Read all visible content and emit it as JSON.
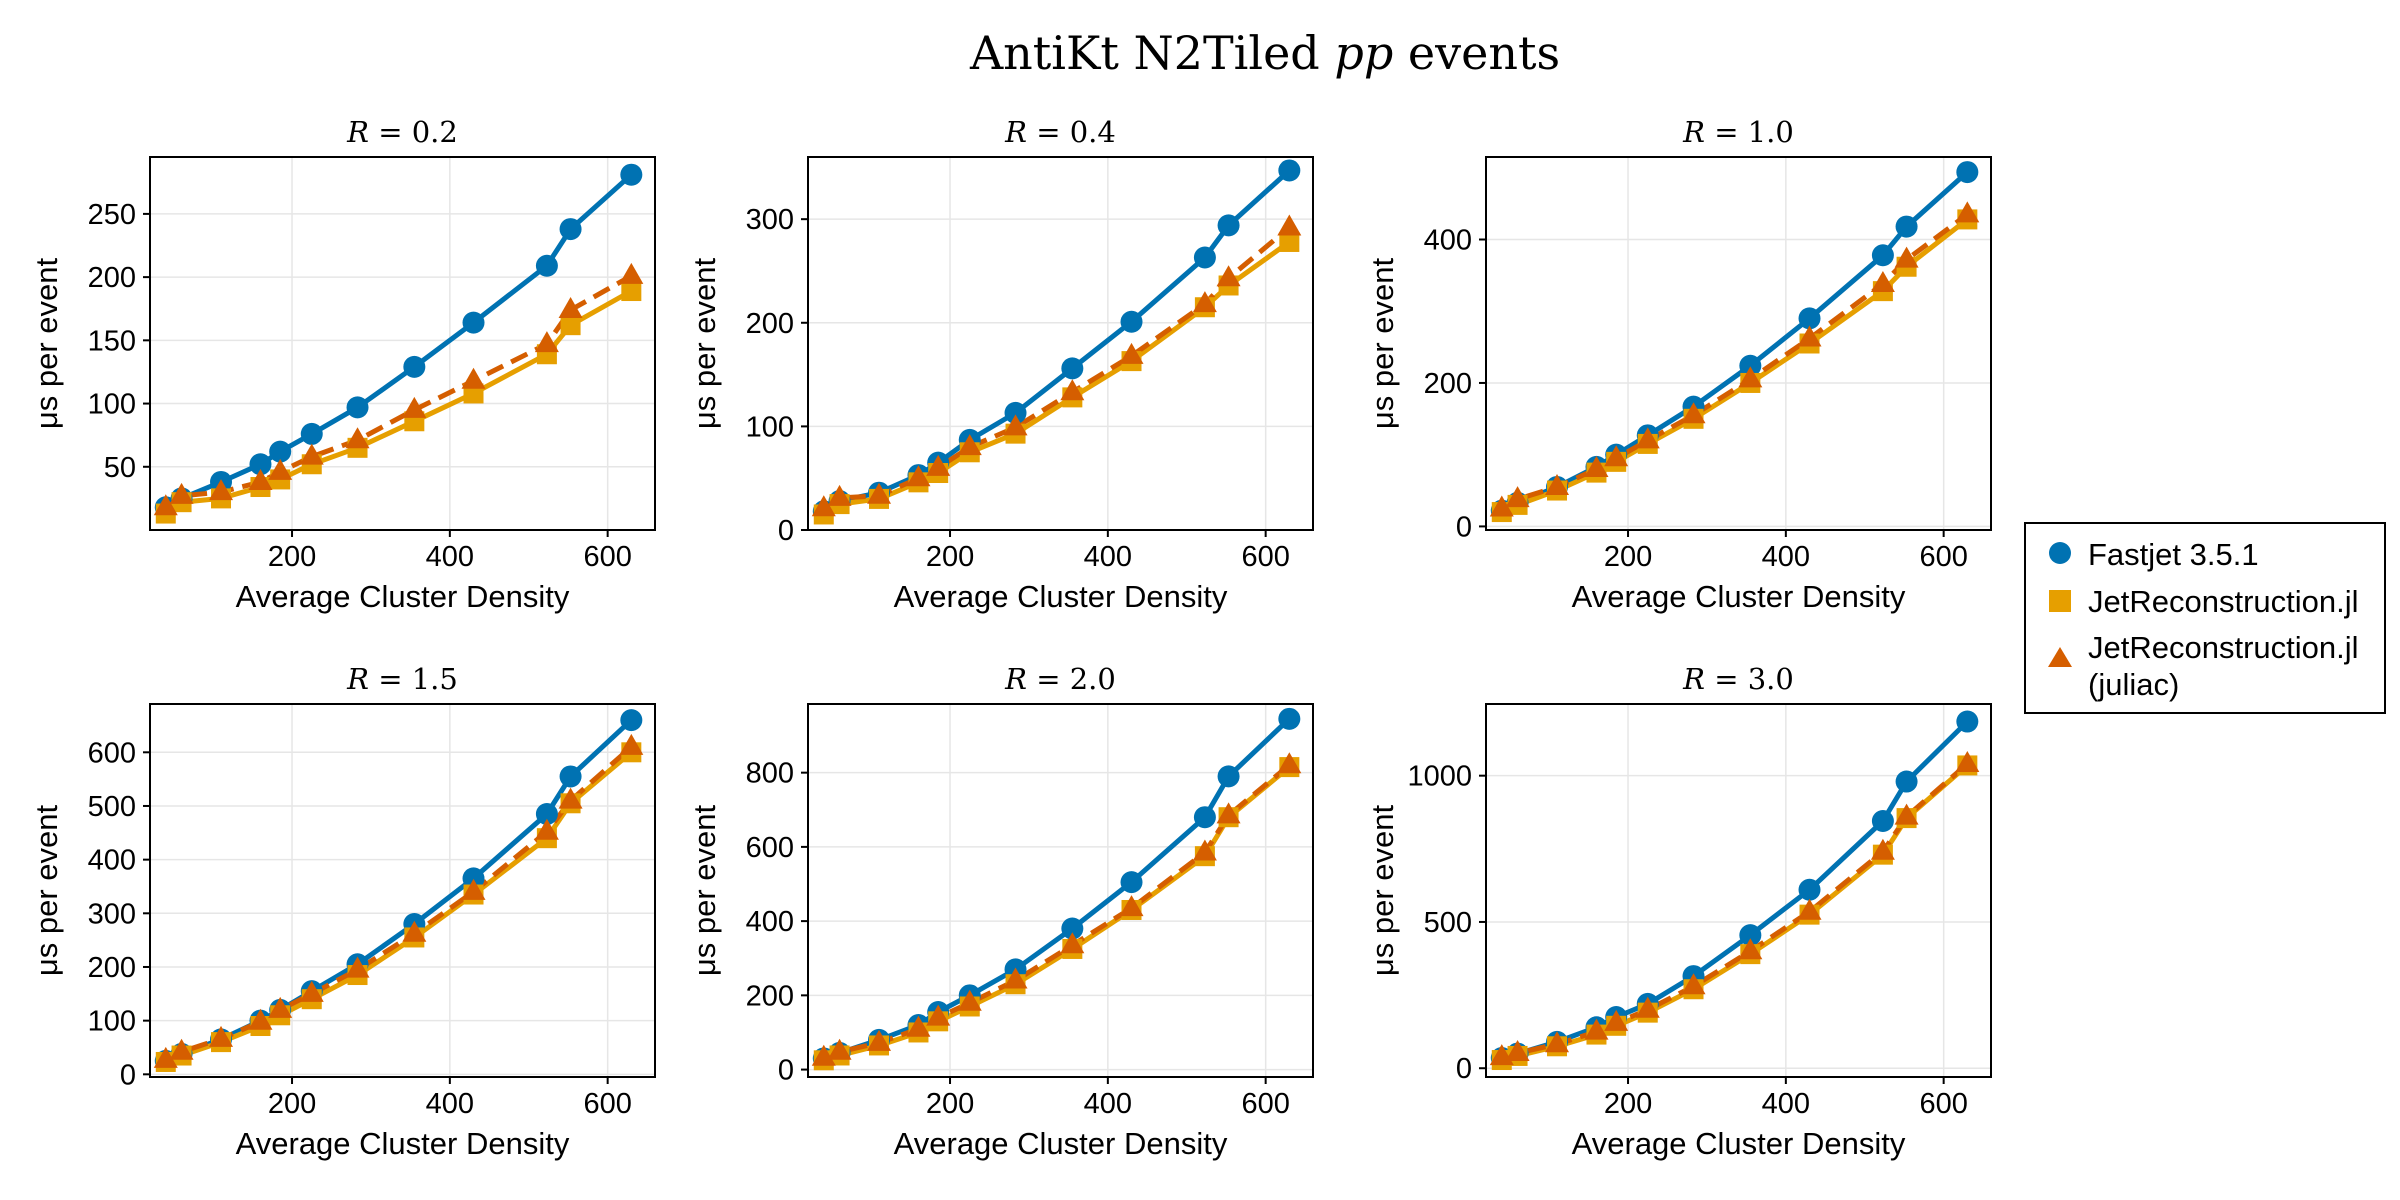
{
  "title": {
    "prefix": "AntiKt N2Tiled ",
    "italic": "pp",
    "suffix": " events"
  },
  "legend": {
    "entries": [
      {
        "lines": [
          "Fastjet 3.5.1"
        ]
      },
      {
        "lines": [
          "JetReconstruction.jl"
        ]
      },
      {
        "lines": [
          "JetReconstruction.jl",
          "(juliac)"
        ]
      }
    ]
  },
  "colors": {
    "fastjet": "#0072B2",
    "jetreco": "#E69F00",
    "juliac": "#D55E00",
    "grid": "#e6e6e6",
    "frame": "#000000"
  },
  "chart_data": [
    {
      "type": "line",
      "title": "R = 0.2",
      "title_var": "R",
      "title_value": "0.2",
      "xlabel": "Average Cluster Density",
      "ylabel": "μs per event",
      "xlim": [
        20,
        660
      ],
      "ylim": [
        0,
        295
      ],
      "xticks": [
        200,
        400,
        600
      ],
      "yticks": [
        50,
        100,
        150,
        200,
        250
      ],
      "x": [
        40,
        60,
        110,
        160,
        185,
        225,
        283,
        355,
        430,
        523,
        553,
        630
      ],
      "series": [
        {
          "name": "Fastjet 3.5.1",
          "marker": "circle",
          "dashed": false,
          "values": [
            18,
            25,
            38,
            52,
            62,
            76,
            97,
            129,
            164,
            209,
            238,
            281
          ]
        },
        {
          "name": "JetReconstruction.jl",
          "marker": "square",
          "dashed": false,
          "values": [
            13,
            22,
            25,
            34,
            40,
            52,
            65,
            86,
            108,
            139,
            162,
            189
          ]
        },
        {
          "name": "JetReconstruction.jl (juliac)",
          "marker": "triangle",
          "dashed": true,
          "values": [
            18,
            27,
            30,
            38,
            46,
            58,
            71,
            95,
            118,
            147,
            174,
            201
          ]
        }
      ]
    },
    {
      "type": "line",
      "title": "R = 0.4",
      "title_var": "R",
      "title_value": "0.4",
      "xlabel": "Average Cluster Density",
      "ylabel": "μs per event",
      "xlim": [
        20,
        660
      ],
      "ylim": [
        0,
        360
      ],
      "xticks": [
        200,
        400,
        600
      ],
      "yticks": [
        0,
        100,
        200,
        300
      ],
      "x": [
        40,
        60,
        110,
        160,
        185,
        225,
        283,
        355,
        430,
        523,
        553,
        630
      ],
      "series": [
        {
          "name": "Fastjet 3.5.1",
          "marker": "circle",
          "dashed": false,
          "values": [
            18,
            28,
            36,
            53,
            65,
            87,
            113,
            156,
            201,
            263,
            294,
            347
          ]
        },
        {
          "name": "JetReconstruction.jl",
          "marker": "square",
          "dashed": false,
          "values": [
            15,
            25,
            30,
            46,
            55,
            75,
            93,
            128,
            163,
            215,
            236,
            278
          ]
        },
        {
          "name": "JetReconstruction.jl (juliac)",
          "marker": "triangle",
          "dashed": true,
          "values": [
            21,
            31,
            33,
            50,
            60,
            80,
            99,
            133,
            168,
            218,
            243,
            292
          ]
        }
      ]
    },
    {
      "type": "line",
      "title": "R = 1.0",
      "title_var": "R",
      "title_value": "1.0",
      "xlabel": "Average Cluster Density",
      "ylabel": "μs per event",
      "xlim": [
        20,
        660
      ],
      "ylim": [
        -5,
        515
      ],
      "xticks": [
        200,
        400,
        600
      ],
      "yticks": [
        0,
        200,
        400
      ],
      "x": [
        40,
        60,
        110,
        160,
        185,
        225,
        283,
        355,
        430,
        523,
        553,
        630
      ],
      "series": [
        {
          "name": "Fastjet 3.5.1",
          "marker": "circle",
          "dashed": false,
          "values": [
            22,
            33,
            55,
            83,
            100,
            127,
            167,
            224,
            290,
            378,
            418,
            494
          ]
        },
        {
          "name": "JetReconstruction.jl",
          "marker": "square",
          "dashed": false,
          "values": [
            20,
            30,
            50,
            75,
            90,
            115,
            150,
            200,
            255,
            328,
            362,
            428
          ]
        },
        {
          "name": "JetReconstruction.jl (juliac)",
          "marker": "triangle",
          "dashed": true,
          "values": [
            25,
            38,
            55,
            80,
            95,
            120,
            155,
            205,
            262,
            338,
            372,
            435
          ]
        }
      ]
    },
    {
      "type": "line",
      "title": "R = 1.5",
      "title_var": "R",
      "title_value": "1.5",
      "xlabel": "Average Cluster Density",
      "ylabel": "μs per event",
      "xlim": [
        20,
        660
      ],
      "ylim": [
        -5,
        690
      ],
      "xticks": [
        200,
        400,
        600
      ],
      "yticks": [
        0,
        100,
        200,
        300,
        400,
        500,
        600
      ],
      "x": [
        40,
        60,
        110,
        160,
        185,
        225,
        283,
        355,
        430,
        523,
        553,
        630
      ],
      "series": [
        {
          "name": "Fastjet 3.5.1",
          "marker": "circle",
          "dashed": false,
          "values": [
            25,
            38,
            65,
            100,
            120,
            155,
            205,
            280,
            365,
            485,
            555,
            660
          ]
        },
        {
          "name": "JetReconstruction.jl",
          "marker": "square",
          "dashed": false,
          "values": [
            23,
            35,
            60,
            90,
            110,
            140,
            185,
            255,
            335,
            440,
            505,
            600
          ]
        },
        {
          "name": "JetReconstruction.jl (juliac)",
          "marker": "triangle",
          "dashed": true,
          "values": [
            27,
            42,
            66,
            98,
            120,
            150,
            195,
            262,
            340,
            452,
            510,
            610
          ]
        }
      ]
    },
    {
      "type": "line",
      "title": "R = 2.0",
      "title_var": "R",
      "title_value": "2.0",
      "xlabel": "Average Cluster Density",
      "ylabel": "μs per event",
      "xlim": [
        20,
        660
      ],
      "ylim": [
        -20,
        985
      ],
      "xticks": [
        200,
        400,
        600
      ],
      "yticks": [
        0,
        200,
        400,
        600,
        800
      ],
      "x": [
        40,
        60,
        110,
        160,
        185,
        225,
        283,
        355,
        430,
        523,
        553,
        630
      ],
      "series": [
        {
          "name": "Fastjet 3.5.1",
          "marker": "circle",
          "dashed": false,
          "values": [
            30,
            45,
            80,
            120,
            155,
            200,
            270,
            380,
            505,
            680,
            790,
            945
          ]
        },
        {
          "name": "JetReconstruction.jl",
          "marker": "square",
          "dashed": false,
          "values": [
            25,
            38,
            65,
            100,
            130,
            170,
            230,
            325,
            430,
            575,
            680,
            815
          ]
        },
        {
          "name": "JetReconstruction.jl (juliac)",
          "marker": "triangle",
          "dashed": true,
          "values": [
            32,
            48,
            72,
            110,
            140,
            180,
            240,
            335,
            435,
            585,
            685,
            820
          ]
        }
      ]
    },
    {
      "type": "line",
      "title": "R = 3.0",
      "title_var": "R",
      "title_value": "3.0",
      "xlabel": "Average Cluster Density",
      "ylabel": "μs per event",
      "xlim": [
        20,
        660
      ],
      "ylim": [
        -30,
        1245
      ],
      "xticks": [
        200,
        400,
        600
      ],
      "yticks": [
        0,
        500,
        1000
      ],
      "x": [
        40,
        60,
        110,
        160,
        185,
        225,
        283,
        355,
        430,
        523,
        553,
        630
      ],
      "series": [
        {
          "name": "Fastjet 3.5.1",
          "marker": "circle",
          "dashed": false,
          "values": [
            35,
            50,
            90,
            140,
            175,
            220,
            315,
            455,
            610,
            845,
            980,
            1185
          ]
        },
        {
          "name": "JetReconstruction.jl",
          "marker": "square",
          "dashed": false,
          "values": [
            28,
            42,
            75,
            115,
            145,
            190,
            270,
            390,
            525,
            730,
            855,
            1035
          ]
        },
        {
          "name": "JetReconstruction.jl (juliac)",
          "marker": "triangle",
          "dashed": true,
          "values": [
            38,
            52,
            82,
            125,
            155,
            200,
            280,
            400,
            535,
            740,
            860,
            1040
          ]
        }
      ]
    }
  ]
}
